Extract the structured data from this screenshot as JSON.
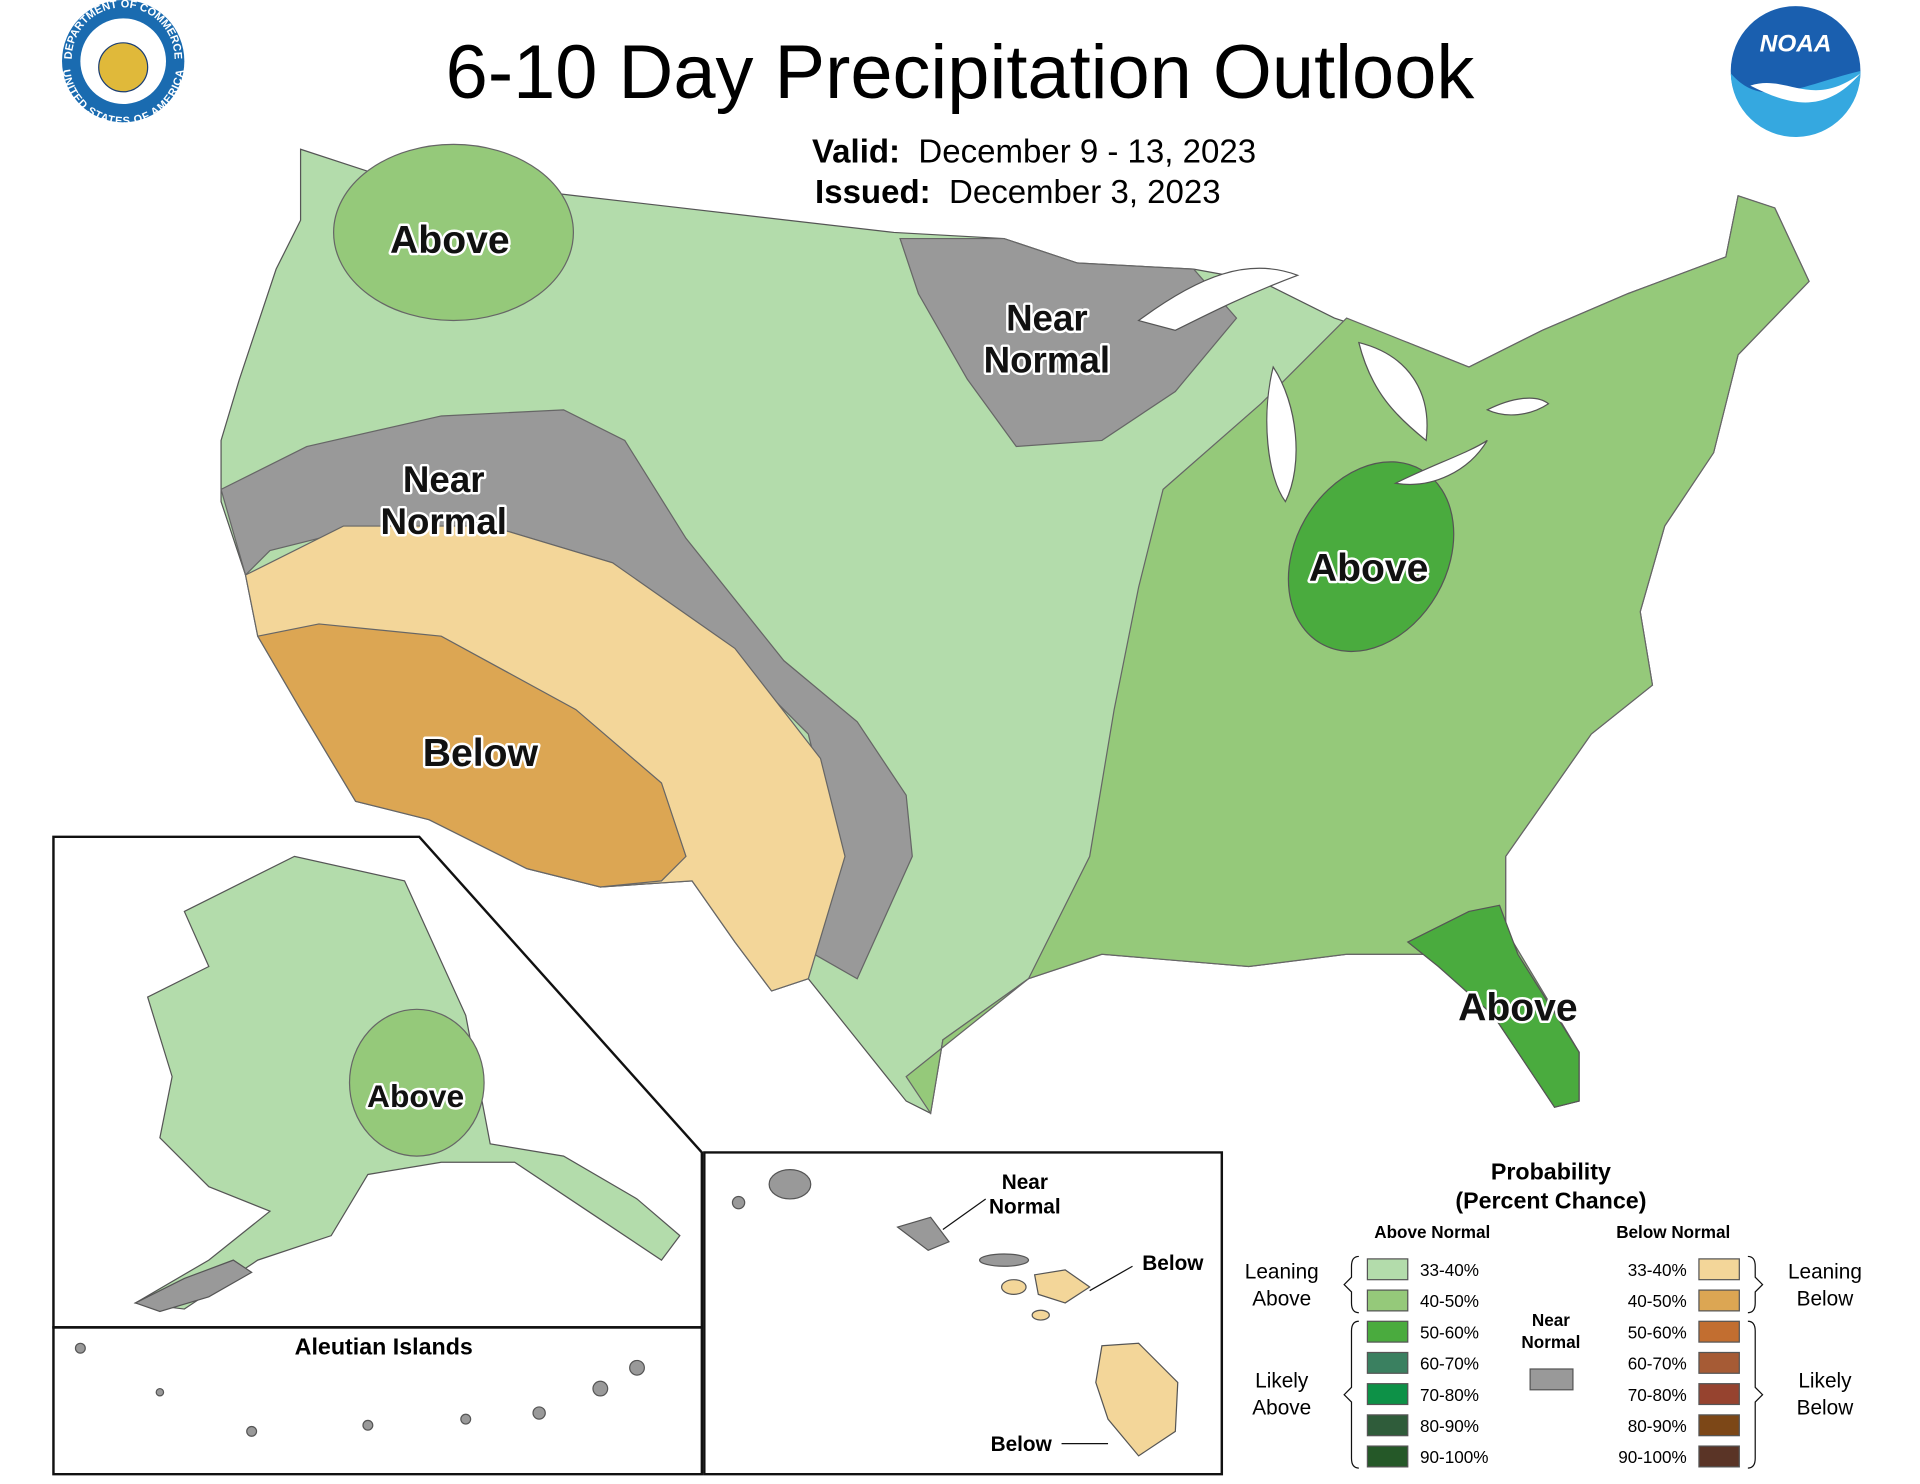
{
  "header": {
    "title": "6-10 Day Precipitation Outlook",
    "valid_label": "Valid:",
    "valid_dates": "December 9 - 13, 2023",
    "issued_label": "Issued:",
    "issued_date": "December 3, 2023"
  },
  "logos": {
    "seal_top": "DEPARTMENT OF COMMERCE",
    "seal_bottom": "UNITED STATES OF AMERICA",
    "noaa": "NOAA"
  },
  "map_labels": [
    {
      "lines": [
        "Above"
      ]
    },
    {
      "lines": [
        "Near",
        "Normal"
      ]
    },
    {
      "lines": [
        "Near",
        "Normal"
      ]
    },
    {
      "lines": [
        "Above"
      ]
    },
    {
      "lines": [
        "Below"
      ]
    },
    {
      "lines": [
        "Above"
      ]
    },
    {
      "lines": [
        "Above"
      ]
    }
  ],
  "insets": {
    "aleutian_title": "Aleutian Islands",
    "hawaii_labels": [
      {
        "lines": [
          "Near",
          "Normal"
        ]
      },
      {
        "lines": [
          "Below"
        ]
      },
      {
        "lines": [
          "Below"
        ]
      }
    ]
  },
  "legend": {
    "title": [
      "Probability",
      "(Percent Chance)"
    ],
    "above_heading": "Above Normal",
    "below_heading": "Below Normal",
    "above": [
      {
        "range": "33-40%",
        "color": "#b3dcab"
      },
      {
        "range": "40-50%",
        "color": "#95c97a"
      },
      {
        "range": "50-60%",
        "color": "#4aab3e"
      },
      {
        "range": "60-70%",
        "color": "#3a8060"
      },
      {
        "range": "70-80%",
        "color": "#0d9147"
      },
      {
        "range": "80-90%",
        "color": "#2f5c3a"
      },
      {
        "range": "90-100%",
        "color": "#255828"
      }
    ],
    "below": [
      {
        "range": "33-40%",
        "color": "#f3d699"
      },
      {
        "range": "40-50%",
        "color": "#dca653"
      },
      {
        "range": "50-60%",
        "color": "#c26e30"
      },
      {
        "range": "60-70%",
        "color": "#a65b35"
      },
      {
        "range": "70-80%",
        "color": "#96432f"
      },
      {
        "range": "80-90%",
        "color": "#7c4717"
      },
      {
        "range": "90-100%",
        "color": "#5a3426"
      }
    ],
    "near": {
      "lines": [
        "Near",
        "Normal"
      ],
      "color": "#999999"
    },
    "groups": {
      "leaning_above": [
        "Leaning",
        "Above"
      ],
      "likely_above": [
        "Likely",
        "Above"
      ],
      "leaning_below": [
        "Leaning",
        "Below"
      ],
      "likely_below": [
        "Likely",
        "Below"
      ]
    }
  }
}
